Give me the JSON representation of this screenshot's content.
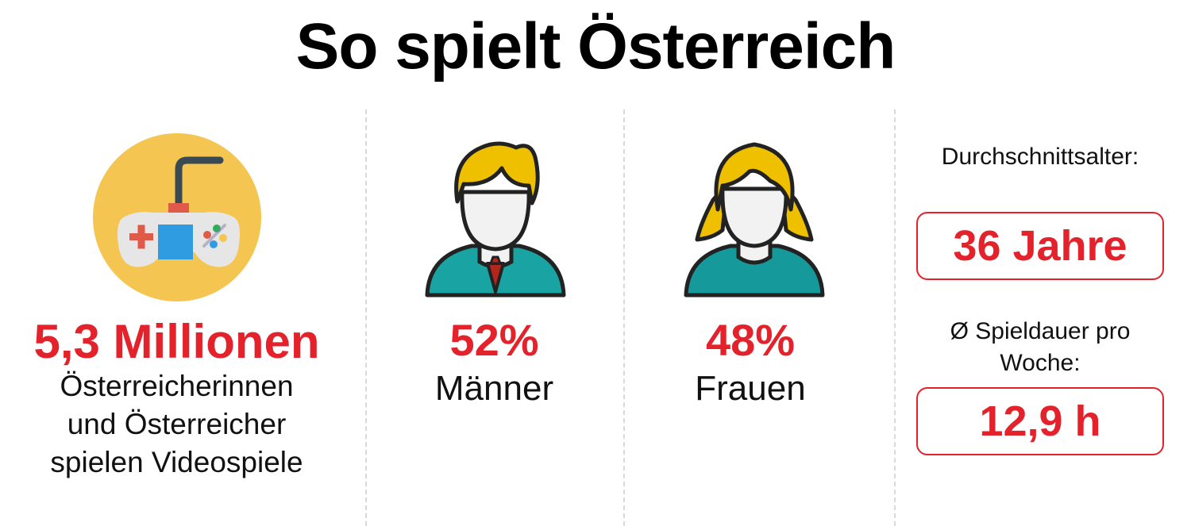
{
  "title": "So spielt Österreich",
  "players": {
    "icon": "game-controller-icon",
    "count": "5,3 Millionen",
    "description_lines": [
      "Österreicherinnen",
      "und Österreicher",
      "spielen Videospiele"
    ]
  },
  "men": {
    "icon": "man-avatar-icon",
    "percent": "52%",
    "label": "Männer"
  },
  "women": {
    "icon": "woman-avatar-icon",
    "percent": "48%",
    "label": "Frauen"
  },
  "average_age": {
    "label": "Durchschnittsalter:",
    "value": "36 Jahre"
  },
  "play_time": {
    "label_lines": [
      "Ø Spieldauer pro",
      "Woche:"
    ],
    "value": "12,9 h"
  },
  "colors": {
    "accent_red": "#e3222b",
    "circle_yellow": "#f4c551",
    "hair_yellow": "#eec000",
    "shirt_teal": "#1aa3a3",
    "tie_red": "#b3261e"
  }
}
